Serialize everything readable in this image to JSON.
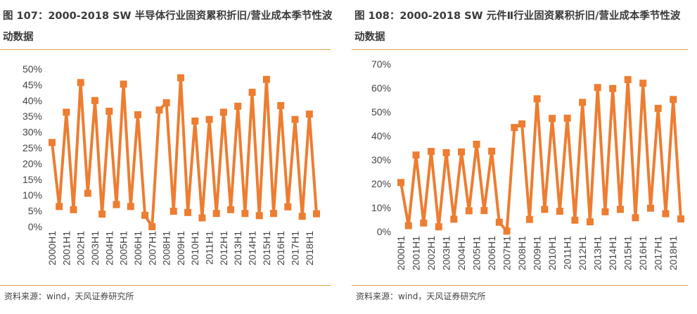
{
  "left": {
    "title": "图 107：2000-2018 SW 半导体行业固资累积折旧/营业成本季节性波动数据",
    "source": "资料来源：wind，天风证券研究所"
  },
  "right": {
    "title": "图 108：2000-2018 SW 元件Ⅱ行业固资累积折旧/营业成本季节性波动数据",
    "source": "资料来源：wind，天风证券研究所"
  },
  "colors": {
    "series": "#ed7d31",
    "rule": "#e3a24a"
  },
  "chart_data": [
    {
      "type": "line",
      "title": "",
      "xlabel": "",
      "ylabel": "",
      "ylim": [
        0,
        50
      ],
      "yticks": [
        "0%",
        "5%",
        "10%",
        "15%",
        "20%",
        "25%",
        "30%",
        "35%",
        "40%",
        "45%",
        "50%"
      ],
      "x_labels": [
        "2000H1",
        "2001H1",
        "2002H1",
        "2003H1",
        "2004H1",
        "2005H1",
        "2006H1",
        "2007H1",
        "2008H1",
        "2009H1",
        "2010H1",
        "2011H1",
        "2012H1",
        "2013H1",
        "2014H1",
        "2015H1",
        "2016H1",
        "2017H1",
        "2018H1"
      ],
      "grid": false,
      "legend": "none",
      "values": [
        26.7,
        6.4,
        36.3,
        5.4,
        45.7,
        10.6,
        40.0,
        4.0,
        36.6,
        7.0,
        45.2,
        6.4,
        35.5,
        3.6,
        0.0,
        37.0,
        39.3,
        4.9,
        47.2,
        4.5,
        33.5,
        2.8,
        34.0,
        4.2,
        36.3,
        5.4,
        38.2,
        4.2,
        42.6,
        3.5,
        46.7,
        4.2,
        38.4,
        6.3,
        34.0,
        3.3,
        35.7,
        4.1
      ]
    },
    {
      "type": "line",
      "title": "",
      "xlabel": "",
      "ylabel": "",
      "ylim": [
        0,
        70
      ],
      "yticks": [
        "0%",
        "10%",
        "20%",
        "30%",
        "40%",
        "50%",
        "60%",
        "70%"
      ],
      "x_labels": [
        "2000H1",
        "2001H1",
        "2002H1",
        "2003H1",
        "2004H1",
        "2005H1",
        "2006H1",
        "2007H1",
        "2008H1",
        "2009H1",
        "2010H1",
        "2011H1",
        "2012H1",
        "2013H1",
        "2014H1",
        "2015H1",
        "2016H1",
        "2017H1",
        "2018H1"
      ],
      "grid": false,
      "legend": "none",
      "values": [
        20.5,
        2.5,
        32.0,
        3.6,
        33.5,
        2.0,
        33.0,
        5.2,
        33.3,
        8.7,
        36.5,
        8.8,
        33.6,
        3.9,
        0.2,
        43.5,
        45.0,
        5.1,
        55.5,
        9.3,
        47.3,
        8.5,
        47.4,
        4.8,
        54.0,
        4.1,
        60.2,
        8.3,
        59.8,
        9.3,
        63.5,
        5.8,
        62.0,
        9.8,
        51.5,
        7.5,
        55.2,
        5.3
      ]
    }
  ]
}
